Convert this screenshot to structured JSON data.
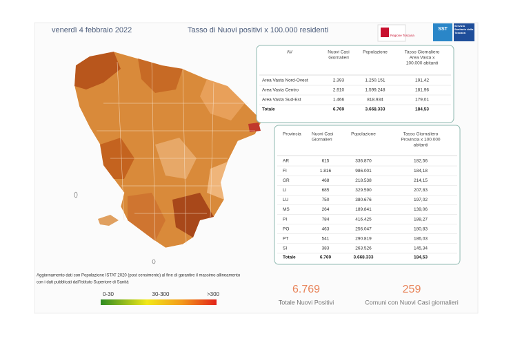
{
  "header": {
    "date": "venerdì 4 febbraio 2022",
    "title": "Tasso di Nuovi positivi x 100.000 residenti",
    "logo_left": "Regione Toscana",
    "logo_right_short": "SST",
    "logo_right": "Servizio Sanitario della Toscana"
  },
  "table_av": {
    "headers": [
      [
        "AV"
      ],
      [
        "Nuovi Casi",
        "Giornalieri"
      ],
      [
        "Popolazione"
      ],
      [
        "Tasso Giornaliero",
        "Area Vasta x",
        "100.000 abitanti"
      ]
    ],
    "rows": [
      [
        "Area Vasta Nord-Ovest",
        "2.393",
        "1.250.151",
        "191,42"
      ],
      [
        "Area Vasta Centro",
        "2.910",
        "1.599.248",
        "181,96"
      ],
      [
        "Area Vasta Sud-Est",
        "1.466",
        "818.934",
        "179,01"
      ]
    ],
    "total": [
      "Totale",
      "6.769",
      "3.668.333",
      "184,53"
    ]
  },
  "table_prov": {
    "headers": [
      [
        "Provincia"
      ],
      [
        "Nuovi Casi",
        "Giornalieri"
      ],
      [
        "Popolazione"
      ],
      [
        "Tasso Giornaliero",
        "Provincia x 100.000",
        "abitanti"
      ]
    ],
    "rows": [
      [
        "AR",
        "615",
        "336.870",
        "182,56"
      ],
      [
        "FI",
        "1.816",
        "986.001",
        "184,18"
      ],
      [
        "GR",
        "468",
        "218.538",
        "214,15"
      ],
      [
        "LI",
        "685",
        "329.590",
        "207,83"
      ],
      [
        "LU",
        "750",
        "380.676",
        "197,02"
      ],
      [
        "MS",
        "264",
        "189.841",
        "139,06"
      ],
      [
        "PI",
        "784",
        "416.425",
        "188,27"
      ],
      [
        "PO",
        "463",
        "256.047",
        "180,83"
      ],
      [
        "PT",
        "541",
        "290.819",
        "186,03"
      ],
      [
        "SI",
        "383",
        "263.526",
        "145,34"
      ]
    ],
    "total": [
      "Totale",
      "6.769",
      "3.668.333",
      "184,53"
    ]
  },
  "note": [
    "Aggiornamento dati con Popolazione ISTAT 2020 (post censimento) al fine di garantire il massimo allineamento",
    "con i dati pubblicati dall'Istituto Superiore di Sanità"
  ],
  "legend": [
    "0-30",
    "30-300",
    ">300"
  ],
  "kpis": [
    {
      "value": "6.769",
      "label": "Totale Nuovi Positivi"
    },
    {
      "value": "259",
      "label": "Comuni con Nuovi Casi giornalieri"
    }
  ]
}
